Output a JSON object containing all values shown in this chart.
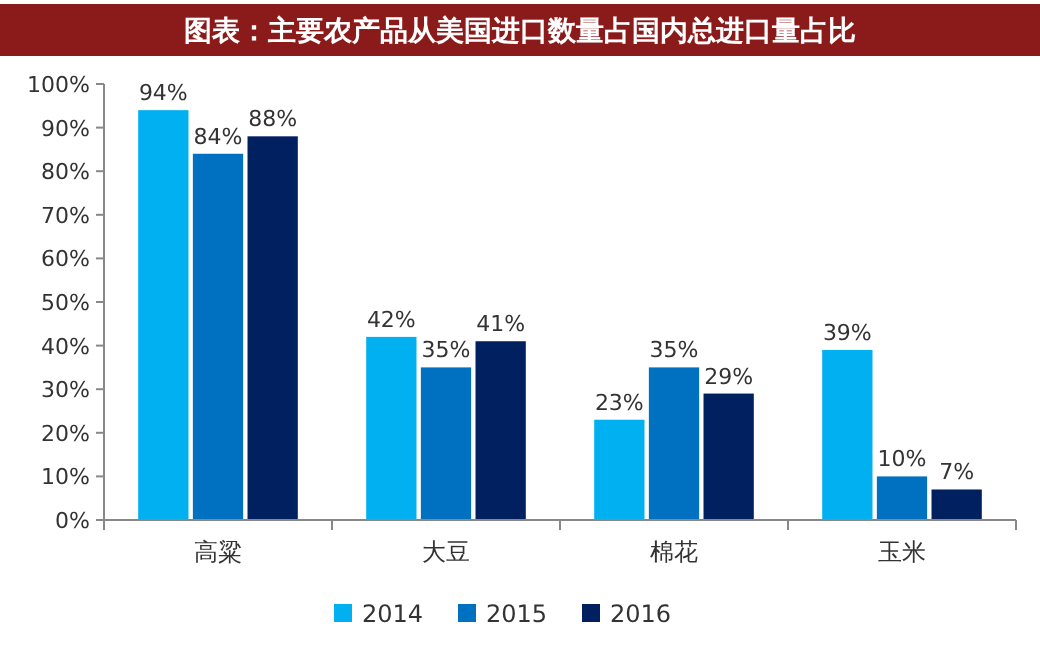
{
  "chart_data": {
    "type": "bar",
    "title": "图表：主要农产品从美国进口数量占国内总进口量占比",
    "categories": [
      "高粱",
      "大豆",
      "棉花",
      "玉米"
    ],
    "series": [
      {
        "name": "2014",
        "color": "#00b0f0",
        "values": [
          94,
          42,
          23,
          39
        ],
        "value_labels": [
          "94%",
          "42%",
          "23%",
          "39%"
        ]
      },
      {
        "name": "2015",
        "color": "#0070c0",
        "values": [
          84,
          35,
          35,
          10
        ],
        "value_labels": [
          "84%",
          "35%",
          "35%",
          "10%"
        ]
      },
      {
        "name": "2016",
        "color": "#002060",
        "values": [
          88,
          41,
          29,
          7
        ],
        "value_labels": [
          "88%",
          "41%",
          "29%",
          "7%"
        ]
      }
    ],
    "ylim": [
      0,
      100
    ],
    "yticks": [
      {
        "value": 0,
        "label": "0%"
      },
      {
        "value": 10,
        "label": "10%"
      },
      {
        "value": 20,
        "label": "20%"
      },
      {
        "value": 30,
        "label": "30%"
      },
      {
        "value": 40,
        "label": "40%"
      },
      {
        "value": 50,
        "label": "50%"
      },
      {
        "value": 60,
        "label": "60%"
      },
      {
        "value": 70,
        "label": "70%"
      },
      {
        "value": 80,
        "label": "80%"
      },
      {
        "value": 90,
        "label": "90%"
      },
      {
        "value": 100,
        "label": "100%"
      }
    ],
    "grid": false,
    "legend": "bottom"
  }
}
